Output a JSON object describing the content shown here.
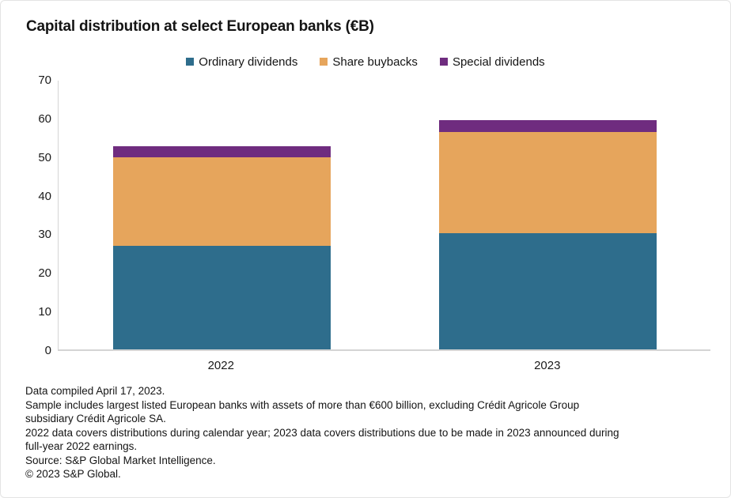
{
  "title": "Capital distribution at select European banks (€B)",
  "chart_data": {
    "type": "bar",
    "stacked": true,
    "title": "Capital distribution at select European banks (€B)",
    "xlabel": "",
    "ylabel": "",
    "categories": [
      "2022",
      "2023"
    ],
    "series": [
      {
        "name": "Ordinary dividends",
        "color": "#2E6D8C",
        "values": [
          26.8,
          30.0
        ]
      },
      {
        "name": "Share buybacks",
        "color": "#E6A55C",
        "values": [
          23.0,
          26.3
        ]
      },
      {
        "name": "Special dividends",
        "color": "#6F2C7F",
        "values": [
          2.9,
          3.1
        ]
      }
    ],
    "totals": [
      52.7,
      59.4
    ],
    "ylim": [
      0,
      70
    ],
    "ytick_step": 10,
    "grid": false,
    "legend_position": "top-center",
    "axis_color": "#d4d4d4"
  },
  "footnotes": [
    "Data compiled April 17, 2023.",
    "Sample includes largest listed European banks with assets of more than €600 billion, excluding Crédit Agricole Group",
    "subsidiary Crédit Agricole SA.",
    "2022 data covers distributions during calendar year; 2023 data covers distributions due to be made in 2023 announced during",
    "full-year 2022 earnings.",
    "Source: S&P Global Market Intelligence.",
    "© 2023 S&P Global."
  ]
}
